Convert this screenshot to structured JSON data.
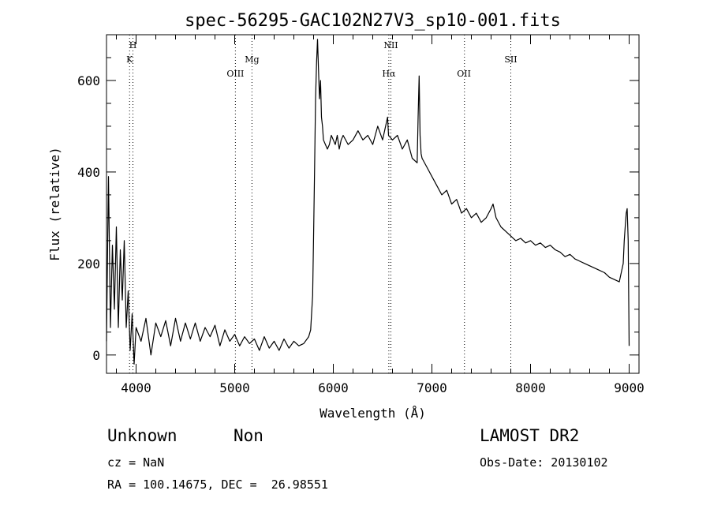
{
  "chart_data": {
    "type": "line",
    "title": "spec-56295-GAC102N27V3_sp10-001.fits",
    "xlabel": "Wavelength (Å)",
    "ylabel": "Flux (relative)",
    "xlim": [
      3700,
      9100
    ],
    "ylim": [
      -40,
      700
    ],
    "x_ticks": [
      4000,
      5000,
      6000,
      7000,
      8000,
      9000
    ],
    "y_ticks": [
      0,
      200,
      400,
      600
    ],
    "grid": false,
    "line_color": "#000000",
    "series": [
      {
        "x": [
          3700,
          3720,
          3740,
          3760,
          3780,
          3800,
          3820,
          3840,
          3860,
          3880,
          3900,
          3920,
          3940,
          3960,
          3980,
          4000,
          4050,
          4100,
          4150,
          4200,
          4250,
          4300,
          4350,
          4400,
          4450,
          4500,
          4550,
          4600,
          4650,
          4700,
          4750,
          4800,
          4850,
          4900,
          4950,
          5000,
          5050,
          5100,
          5150,
          5200,
          5250,
          5300,
          5350,
          5400,
          5450,
          5500,
          5550,
          5600,
          5650,
          5700,
          5750,
          5770,
          5790,
          5800,
          5810,
          5820,
          5830,
          5840,
          5850,
          5860,
          5870,
          5880,
          5890,
          5900,
          5920,
          5940,
          5960,
          5980,
          6000,
          6020,
          6040,
          6060,
          6080,
          6100,
          6150,
          6200,
          6250,
          6300,
          6350,
          6400,
          6450,
          6500,
          6550,
          6560,
          6600,
          6650,
          6700,
          6750,
          6800,
          6850,
          6860,
          6870,
          6880,
          6890,
          6900,
          6950,
          7000,
          7050,
          7100,
          7150,
          7200,
          7250,
          7300,
          7350,
          7400,
          7450,
          7500,
          7550,
          7600,
          7620,
          7650,
          7700,
          7750,
          7800,
          7850,
          7900,
          7950,
          8000,
          8050,
          8100,
          8150,
          8200,
          8250,
          8300,
          8350,
          8400,
          8450,
          8500,
          8550,
          8600,
          8650,
          8700,
          8750,
          8800,
          8850,
          8900,
          8920,
          8940,
          8950,
          8960,
          8970,
          8980,
          8990,
          9000
        ],
        "y": [
          30,
          390,
          60,
          240,
          100,
          280,
          60,
          230,
          120,
          250,
          60,
          140,
          10,
          90,
          -20,
          60,
          30,
          80,
          0,
          70,
          40,
          75,
          20,
          80,
          30,
          70,
          35,
          70,
          30,
          60,
          40,
          65,
          20,
          55,
          30,
          45,
          20,
          40,
          25,
          35,
          10,
          40,
          15,
          30,
          10,
          35,
          15,
          30,
          20,
          25,
          40,
          55,
          130,
          260,
          410,
          560,
          640,
          690,
          620,
          560,
          600,
          520,
          500,
          470,
          460,
          450,
          460,
          480,
          470,
          460,
          480,
          450,
          470,
          480,
          460,
          470,
          490,
          470,
          480,
          460,
          500,
          470,
          520,
          480,
          470,
          480,
          450,
          470,
          430,
          420,
          520,
          610,
          480,
          440,
          430,
          410,
          390,
          370,
          350,
          360,
          330,
          340,
          310,
          320,
          300,
          310,
          290,
          300,
          320,
          330,
          300,
          280,
          270,
          260,
          250,
          255,
          245,
          250,
          240,
          245,
          235,
          240,
          230,
          225,
          215,
          220,
          210,
          205,
          200,
          195,
          190,
          185,
          180,
          170,
          165,
          160,
          180,
          200,
          250,
          280,
          310,
          320,
          250,
          20
        ]
      }
    ],
    "annotations": [
      {
        "text": "H",
        "x": 3968,
        "row": 1
      },
      {
        "text": "K",
        "x": 3934,
        "row": 2
      },
      {
        "text": "OIII",
        "x": 5007,
        "row": 3
      },
      {
        "text": "Mg",
        "x": 5175,
        "row": 2
      },
      {
        "text": "NII",
        "x": 6584,
        "row": 1
      },
      {
        "text": "Hα",
        "x": 6563,
        "row": 3
      },
      {
        "text": "OII",
        "x": 7325,
        "row": 3
      },
      {
        "text": "SII",
        "x": 7800,
        "row": 2
      }
    ],
    "annotation_lines": [
      3934,
      3968,
      5007,
      5175,
      6563,
      6584,
      7330,
      7800
    ]
  },
  "info": {
    "class_label": "Unknown",
    "subclass_label": "Non",
    "survey_label": "LAMOST DR2",
    "cz_text": "cz = NaN",
    "obs_date_text": "Obs-Date: 20130102",
    "radec_text": "RA = 100.14675, DEC =  26.98551"
  }
}
